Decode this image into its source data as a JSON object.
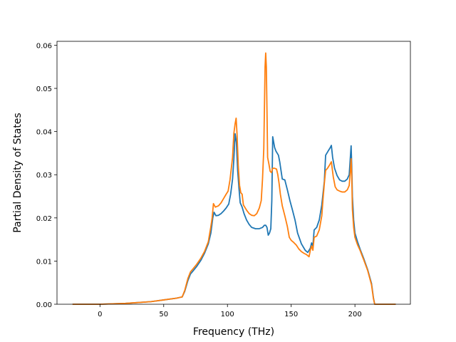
{
  "chart_data": {
    "type": "line",
    "title": "",
    "xlabel": "Frequency (THz)",
    "ylabel": "Partial Density of States",
    "xlim": [
      -33.7,
      243.5
    ],
    "ylim": [
      0,
      0.0609
    ],
    "grid": false,
    "legend": "none",
    "x_ticks": [
      0,
      50,
      100,
      150,
      200
    ],
    "x_tick_labels": [
      "0",
      "50",
      "100",
      "150",
      "200"
    ],
    "y_ticks": [
      0,
      0.01,
      0.02,
      0.03,
      0.04,
      0.05,
      0.06
    ],
    "y_tick_labels": [
      "0.00",
      "0.01",
      "0.02",
      "0.03",
      "0.04",
      "0.05",
      "0.06"
    ],
    "series": [
      {
        "color": "#1f77b4",
        "points": [
          [
            -21.5,
            0.0
          ],
          [
            0,
            0.0
          ],
          [
            20,
            0.0002
          ],
          [
            40,
            0.0006
          ],
          [
            50,
            0.001
          ],
          [
            60,
            0.0014
          ],
          [
            64.5,
            0.0017
          ],
          [
            66.5,
            0.003
          ],
          [
            69,
            0.0055
          ],
          [
            71,
            0.007
          ],
          [
            73,
            0.0077
          ],
          [
            76,
            0.0088
          ],
          [
            79,
            0.0101
          ],
          [
            82,
            0.0118
          ],
          [
            85,
            0.014
          ],
          [
            87,
            0.0165
          ],
          [
            88.5,
            0.02
          ],
          [
            89.5,
            0.0213
          ],
          [
            91,
            0.0205
          ],
          [
            93,
            0.0206
          ],
          [
            95,
            0.021
          ],
          [
            97,
            0.0216
          ],
          [
            99,
            0.0223
          ],
          [
            101,
            0.0232
          ],
          [
            102.5,
            0.0255
          ],
          [
            104,
            0.029
          ],
          [
            105,
            0.0335
          ],
          [
            106,
            0.0395
          ],
          [
            107,
            0.0375
          ],
          [
            108,
            0.031
          ],
          [
            109,
            0.027
          ],
          [
            110,
            0.0235
          ],
          [
            111.5,
            0.0225
          ],
          [
            113,
            0.021
          ],
          [
            115,
            0.0195
          ],
          [
            117,
            0.0185
          ],
          [
            119,
            0.0178
          ],
          [
            122,
            0.0175
          ],
          [
            125,
            0.0175
          ],
          [
            127.5,
            0.0178
          ],
          [
            129,
            0.0183
          ],
          [
            130,
            0.0183
          ],
          [
            131,
            0.0178
          ],
          [
            132,
            0.016
          ],
          [
            133,
            0.0165
          ],
          [
            134,
            0.0175
          ],
          [
            134.8,
            0.024
          ],
          [
            135.5,
            0.0388
          ],
          [
            137,
            0.0363
          ],
          [
            138,
            0.0355
          ],
          [
            140,
            0.0345
          ],
          [
            141,
            0.033
          ],
          [
            142,
            0.031
          ],
          [
            143,
            0.029
          ],
          [
            145,
            0.0288
          ],
          [
            147,
            0.0265
          ],
          [
            149,
            0.024
          ],
          [
            151,
            0.0218
          ],
          [
            153,
            0.0195
          ],
          [
            155,
            0.0165
          ],
          [
            158,
            0.014
          ],
          [
            161,
            0.0125
          ],
          [
            163,
            0.012
          ],
          [
            165,
            0.013
          ],
          [
            166,
            0.0142
          ],
          [
            167,
            0.0135
          ],
          [
            168,
            0.0172
          ],
          [
            170,
            0.0178
          ],
          [
            172,
            0.0195
          ],
          [
            174,
            0.023
          ],
          [
            176,
            0.0285
          ],
          [
            177,
            0.0345
          ],
          [
            179,
            0.0355
          ],
          [
            180.5,
            0.0362
          ],
          [
            181.5,
            0.0368
          ],
          [
            182.5,
            0.034
          ],
          [
            184,
            0.0315
          ],
          [
            186,
            0.0298
          ],
          [
            188,
            0.0288
          ],
          [
            190,
            0.0285
          ],
          [
            192,
            0.0285
          ],
          [
            194,
            0.029
          ],
          [
            195.5,
            0.03
          ],
          [
            197,
            0.0367
          ],
          [
            197.5,
            0.032
          ],
          [
            198,
            0.025
          ],
          [
            199,
            0.0195
          ],
          [
            200,
            0.0165
          ],
          [
            202,
            0.0145
          ],
          [
            204,
            0.0128
          ],
          [
            207,
            0.0105
          ],
          [
            210,
            0.008
          ],
          [
            213,
            0.0048
          ],
          [
            214.5,
            0.0015
          ],
          [
            215.5,
            0.0
          ],
          [
            220,
            0.0
          ],
          [
            232,
            0.0
          ]
        ]
      },
      {
        "color": "#ff7f0e",
        "points": [
          [
            -21.5,
            0.0
          ],
          [
            0,
            0.0
          ],
          [
            20,
            0.0002
          ],
          [
            40,
            0.0006
          ],
          [
            50,
            0.001
          ],
          [
            60,
            0.0014
          ],
          [
            64.5,
            0.0017
          ],
          [
            66.5,
            0.0032
          ],
          [
            69,
            0.006
          ],
          [
            71,
            0.0075
          ],
          [
            73,
            0.0082
          ],
          [
            76,
            0.0093
          ],
          [
            79,
            0.0106
          ],
          [
            82,
            0.0122
          ],
          [
            85,
            0.0145
          ],
          [
            87,
            0.018
          ],
          [
            88,
            0.02
          ],
          [
            89,
            0.0233
          ],
          [
            90.5,
            0.0225
          ],
          [
            93,
            0.0228
          ],
          [
            95,
            0.0235
          ],
          [
            97,
            0.0245
          ],
          [
            99,
            0.0255
          ],
          [
            100.5,
            0.0262
          ],
          [
            102,
            0.0288
          ],
          [
            104,
            0.034
          ],
          [
            105,
            0.0395
          ],
          [
            106,
            0.0418
          ],
          [
            106.8,
            0.0431
          ],
          [
            107.5,
            0.0395
          ],
          [
            108.5,
            0.032
          ],
          [
            109.5,
            0.0275
          ],
          [
            110.5,
            0.0258
          ],
          [
            111.5,
            0.0255
          ],
          [
            112.5,
            0.023
          ],
          [
            115,
            0.0218
          ],
          [
            117,
            0.021
          ],
          [
            119,
            0.0206
          ],
          [
            121,
            0.0205
          ],
          [
            123,
            0.021
          ],
          [
            125,
            0.0223
          ],
          [
            126.5,
            0.024
          ],
          [
            127.5,
            0.029
          ],
          [
            128.5,
            0.036
          ],
          [
            129.5,
            0.055
          ],
          [
            130,
            0.0582
          ],
          [
            130.5,
            0.055
          ],
          [
            131,
            0.045
          ],
          [
            131.5,
            0.034
          ],
          [
            132.5,
            0.0325
          ],
          [
            133.5,
            0.0308
          ],
          [
            134.5,
            0.0305
          ],
          [
            135.5,
            0.0315
          ],
          [
            137,
            0.0315
          ],
          [
            138.5,
            0.0313
          ],
          [
            139.5,
            0.03
          ],
          [
            140.5,
            0.028
          ],
          [
            141.5,
            0.0255
          ],
          [
            143,
            0.0228
          ],
          [
            145,
            0.0205
          ],
          [
            147,
            0.018
          ],
          [
            148.5,
            0.0155
          ],
          [
            150,
            0.0148
          ],
          [
            152,
            0.0143
          ],
          [
            154,
            0.0137
          ],
          [
            156,
            0.0128
          ],
          [
            158,
            0.0122
          ],
          [
            160,
            0.0118
          ],
          [
            162,
            0.0115
          ],
          [
            164,
            0.011
          ],
          [
            165,
            0.0125
          ],
          [
            166,
            0.0135
          ],
          [
            167,
            0.0125
          ],
          [
            168,
            0.0155
          ],
          [
            170,
            0.0158
          ],
          [
            172,
            0.0172
          ],
          [
            174,
            0.0205
          ],
          [
            175,
            0.0245
          ],
          [
            176,
            0.028
          ],
          [
            177,
            0.031
          ],
          [
            178.5,
            0.0315
          ],
          [
            180,
            0.0322
          ],
          [
            181.5,
            0.033
          ],
          [
            183,
            0.0295
          ],
          [
            184.5,
            0.0272
          ],
          [
            186,
            0.0265
          ],
          [
            188,
            0.0262
          ],
          [
            190,
            0.026
          ],
          [
            192,
            0.026
          ],
          [
            194,
            0.0265
          ],
          [
            195.5,
            0.0275
          ],
          [
            196.5,
            0.031
          ],
          [
            197,
            0.0337
          ],
          [
            197.5,
            0.03
          ],
          [
            198,
            0.022
          ],
          [
            199,
            0.0178
          ],
          [
            200,
            0.0155
          ],
          [
            202,
            0.0138
          ],
          [
            204,
            0.0125
          ],
          [
            207,
            0.0102
          ],
          [
            210,
            0.0078
          ],
          [
            213,
            0.0045
          ],
          [
            214.5,
            0.0013
          ],
          [
            215.5,
            0.0
          ],
          [
            220,
            0.0
          ],
          [
            232,
            0.0
          ]
        ]
      }
    ]
  }
}
